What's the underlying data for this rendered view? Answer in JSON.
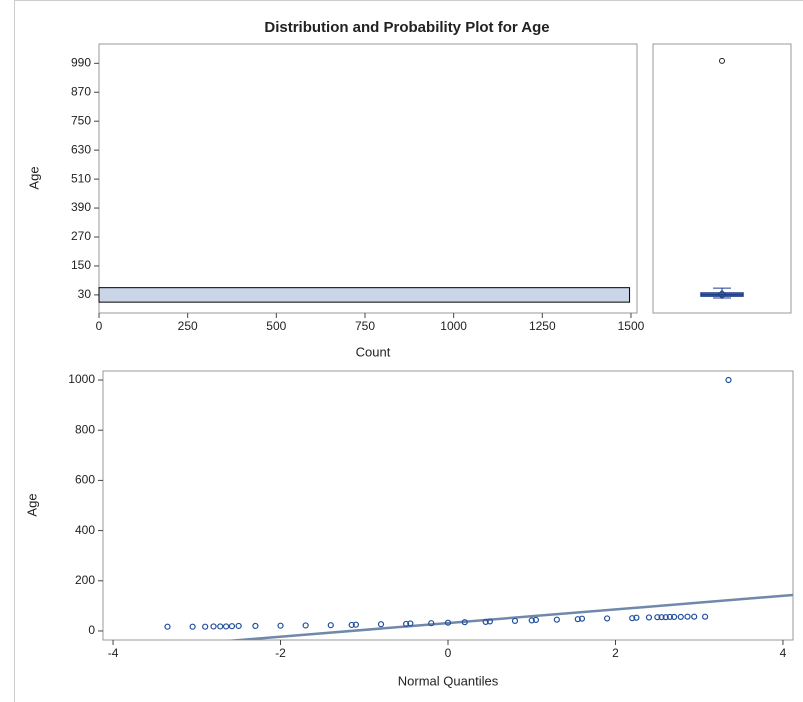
{
  "chart_data": [
    {
      "type": "histogram",
      "title": "Distribution and Probability Plot for Age",
      "orientation": "horizontal",
      "xlabel": "Count",
      "ylabel": "Age",
      "bins": [
        0,
        60
      ],
      "values": [
        1496
      ],
      "color": "#cbd5e8",
      "xlim": [
        0,
        1517
      ],
      "xticks": [
        0,
        250,
        500,
        750,
        1000,
        1250,
        1500
      ],
      "ylim": [
        -45,
        1070
      ],
      "yticks": [
        30,
        150,
        270,
        390,
        510,
        630,
        750,
        870,
        990
      ]
    },
    {
      "type": "box",
      "ylim": [
        -45,
        1070
      ],
      "min": 17,
      "q1": 25,
      "median": 31,
      "q3": 38,
      "max": 58,
      "mean": 32,
      "outliers": [
        1000
      ],
      "color": "#1f3f8a",
      "fill": "#b8c6e2"
    },
    {
      "type": "scatter",
      "xlabel": "Normal Quantiles",
      "ylabel": "Age",
      "color": "#1f4e9e",
      "x": [
        -3.35,
        -3.05,
        -2.9,
        -2.8,
        -2.72,
        -2.65,
        -2.58,
        -2.5,
        -2.3,
        -2.0,
        -1.7,
        -1.4,
        -1.15,
        -1.1,
        -0.8,
        -0.5,
        -0.45,
        -0.2,
        0,
        0.2,
        0.45,
        0.5,
        0.8,
        1.0,
        1.05,
        1.3,
        1.55,
        1.6,
        1.9,
        2.2,
        2.25,
        2.4,
        2.5,
        2.55,
        2.6,
        2.65,
        2.7,
        2.78,
        2.86,
        2.94,
        3.07,
        3.35
      ],
      "y": [
        17,
        17,
        17,
        18,
        18,
        18,
        19,
        20,
        20,
        21,
        22,
        23,
        24,
        25,
        27,
        28,
        30,
        31,
        33,
        35,
        36,
        38,
        40,
        42,
        44,
        45,
        47,
        49,
        50,
        51,
        53,
        54,
        55,
        55,
        55,
        56,
        56,
        56,
        57,
        57,
        57,
        1000
      ],
      "reference_line": {
        "intercept": 31.5,
        "slope": 27.2,
        "color": "#7088aa"
      },
      "xlim": [
        -4.12,
        4.12
      ],
      "xticks": [
        -4,
        -2,
        0,
        2,
        4
      ],
      "ylim": [
        -36,
        1036
      ],
      "yticks": [
        0,
        200,
        400,
        600,
        800,
        1000
      ]
    }
  ]
}
